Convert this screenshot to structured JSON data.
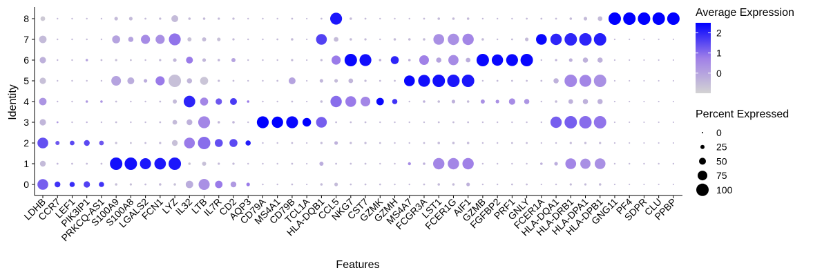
{
  "chart_data": {
    "type": "dot",
    "x_label": "Features",
    "y_label": "Identity",
    "categories": [
      "LDHB",
      "CCR7",
      "LEF1",
      "PIK3IP1",
      "PRKCQ-AS1",
      "S100A9",
      "S100A8",
      "LGALS2",
      "FCN1",
      "LYZ",
      "IL32",
      "LTB",
      "IL7R",
      "CD2",
      "AQP3",
      "CD79A",
      "MS4A1",
      "CD79B",
      "TCL1A",
      "HLA-DQB1",
      "CCL5",
      "NKG7",
      "CST7",
      "GZMK",
      "GZMH",
      "MS4A7",
      "FCGR3A",
      "LST1",
      "FCER1G",
      "AIF1",
      "GZMB",
      "FGFBP2",
      "PRF1",
      "GNLY",
      "FCER1A",
      "HLA-DQA1",
      "HLA-DRB1",
      "HLA-DPA1",
      "HLA-DPB1",
      "GNG11",
      "PF4",
      "SDPR",
      "CLU",
      "PPBP"
    ],
    "rows": [
      {
        "identity": "0",
        "pct_exp": [
          85,
          40,
          35,
          45,
          35,
          10,
          8,
          5,
          10,
          10,
          55,
          88,
          55,
          40,
          20,
          3,
          3,
          5,
          2,
          10,
          20,
          5,
          5,
          5,
          3,
          3,
          5,
          10,
          10,
          20,
          3,
          3,
          5,
          5,
          2,
          3,
          8,
          8,
          10,
          2,
          1,
          1,
          1,
          1
        ],
        "avg_exp": [
          1.2,
          1.8,
          1.9,
          1.6,
          1.8,
          -0.6,
          -0.6,
          -0.5,
          -0.5,
          -0.6,
          -0.2,
          0.4,
          0.8,
          0.2,
          0.8,
          -0.5,
          -0.5,
          -0.5,
          -0.5,
          -0.5,
          -0.5,
          -0.5,
          -0.5,
          -0.5,
          -0.5,
          -0.5,
          -0.5,
          -0.5,
          -0.5,
          -0.3,
          -0.5,
          -0.5,
          -0.5,
          -0.5,
          -0.5,
          -0.5,
          -0.5,
          -0.5,
          -0.5,
          -0.5,
          -0.5,
          -0.5,
          -0.5,
          -0.5
        ]
      },
      {
        "identity": "1",
        "pct_exp": [
          40,
          5,
          5,
          5,
          5,
          100,
          100,
          88,
          92,
          100,
          10,
          25,
          8,
          8,
          3,
          3,
          3,
          5,
          2,
          25,
          5,
          5,
          5,
          3,
          3,
          15,
          10,
          90,
          90,
          90,
          3,
          3,
          3,
          3,
          10,
          20,
          85,
          80,
          85,
          3,
          3,
          3,
          3,
          3
        ],
        "avg_exp": [
          -0.5,
          -0.4,
          -0.5,
          -0.5,
          -0.5,
          2.3,
          2.3,
          2.2,
          2.2,
          2.2,
          -0.7,
          -0.6,
          -0.5,
          -0.5,
          -0.5,
          -0.5,
          -0.5,
          -0.5,
          -0.5,
          -0.2,
          -0.5,
          -0.5,
          -0.5,
          -0.5,
          -0.5,
          0.5,
          -0.3,
          0.6,
          0.6,
          0.7,
          -0.5,
          -0.5,
          -0.5,
          -0.5,
          -0.3,
          -0.2,
          0.6,
          0.4,
          0.4,
          -0.5,
          -0.5,
          -0.5,
          -0.5,
          -0.5
        ]
      },
      {
        "identity": "2",
        "pct_exp": [
          85,
          25,
          30,
          40,
          30,
          8,
          5,
          5,
          8,
          40,
          85,
          100,
          60,
          60,
          35,
          3,
          3,
          5,
          2,
          8,
          20,
          8,
          8,
          5,
          3,
          3,
          5,
          10,
          10,
          10,
          3,
          3,
          5,
          5,
          2,
          3,
          8,
          8,
          8,
          2,
          1,
          1,
          1,
          1
        ],
        "avg_exp": [
          1.4,
          1.3,
          1.5,
          1.5,
          1.3,
          -0.6,
          -0.6,
          -0.5,
          -0.5,
          -0.6,
          0.8,
          1.0,
          1.4,
          1.5,
          2.1,
          -0.5,
          -0.5,
          -0.5,
          -0.5,
          -0.5,
          -0.3,
          -0.5,
          -0.5,
          -0.5,
          -0.5,
          -0.5,
          -0.5,
          -0.5,
          -0.5,
          -0.5,
          -0.5,
          -0.5,
          -0.5,
          -0.5,
          -0.5,
          -0.5,
          -0.5,
          -0.5,
          -0.5,
          -0.5,
          -0.5,
          -0.5,
          -0.5,
          -0.5
        ]
      },
      {
        "identity": "3",
        "pct_exp": [
          45,
          5,
          3,
          3,
          3,
          5,
          3,
          3,
          5,
          30,
          40,
          95,
          10,
          10,
          3,
          95,
          90,
          95,
          65,
          85,
          5,
          5,
          5,
          3,
          3,
          3,
          3,
          5,
          5,
          5,
          3,
          3,
          3,
          3,
          3,
          90,
          100,
          100,
          100,
          2,
          1,
          1,
          1,
          1
        ],
        "avg_exp": [
          -0.4,
          0.2,
          -0.5,
          -0.3,
          -0.5,
          -0.5,
          -0.5,
          -0.5,
          -0.5,
          -0.5,
          -0.3,
          0.6,
          -0.4,
          -0.4,
          -0.5,
          2.5,
          2.5,
          2.4,
          2.5,
          1.2,
          -0.5,
          -0.5,
          -0.5,
          -0.5,
          -0.5,
          -0.5,
          -0.5,
          -0.5,
          -0.5,
          -0.5,
          -0.5,
          -0.5,
          -0.5,
          -0.5,
          -0.5,
          1.2,
          1.2,
          1.0,
          0.9,
          -0.5,
          -0.5,
          -0.5,
          -0.5,
          -0.5
        ]
      },
      {
        "identity": "4",
        "pct_exp": [
          55,
          3,
          3,
          10,
          10,
          5,
          3,
          3,
          5,
          25,
          92,
          60,
          45,
          50,
          10,
          3,
          3,
          5,
          2,
          10,
          90,
          85,
          75,
          55,
          35,
          3,
          10,
          10,
          20,
          10,
          25,
          20,
          45,
          35,
          3,
          10,
          30,
          35,
          35,
          2,
          1,
          1,
          1,
          1
        ],
        "avg_exp": [
          0.3,
          -0.4,
          -0.5,
          0.2,
          0.3,
          -0.5,
          -0.5,
          -0.5,
          -0.5,
          -0.5,
          2.0,
          0.6,
          1.3,
          1.7,
          0.8,
          -0.5,
          -0.5,
          -0.5,
          -0.5,
          -0.5,
          1.0,
          0.8,
          0.6,
          2.4,
          1.8,
          -0.5,
          -0.3,
          -0.5,
          -0.3,
          -0.5,
          0.4,
          0.4,
          0.5,
          0.3,
          -0.5,
          -0.5,
          -0.3,
          -0.3,
          -0.3,
          -0.5,
          -0.5,
          -0.5,
          -0.5,
          -0.5
        ]
      },
      {
        "identity": "5",
        "pct_exp": [
          45,
          3,
          3,
          3,
          3,
          75,
          50,
          20,
          70,
          100,
          35,
          60,
          8,
          5,
          3,
          3,
          5,
          50,
          2,
          20,
          20,
          30,
          8,
          5,
          5,
          85,
          95,
          100,
          100,
          100,
          3,
          5,
          5,
          5,
          5,
          35,
          100,
          95,
          100,
          2,
          1,
          1,
          1,
          1
        ],
        "avg_exp": [
          -0.6,
          -0.5,
          -0.5,
          -0.5,
          -0.5,
          0.0,
          -0.2,
          -0.2,
          0.8,
          -0.6,
          -0.4,
          -0.7,
          -0.5,
          -0.5,
          -0.5,
          -0.5,
          -0.5,
          0.0,
          -0.5,
          -0.4,
          -0.5,
          -0.4,
          -0.5,
          -0.5,
          -0.5,
          2.4,
          2.3,
          2.3,
          2.2,
          2.2,
          -0.5,
          -0.5,
          -0.5,
          -0.5,
          -0.5,
          -0.3,
          0.6,
          0.6,
          0.4,
          -0.5,
          -0.5,
          -0.5,
          -0.5,
          -0.5
        ]
      },
      {
        "identity": "6",
        "pct_exp": [
          45,
          3,
          3,
          10,
          5,
          8,
          5,
          3,
          8,
          20,
          50,
          20,
          10,
          25,
          3,
          3,
          3,
          8,
          2,
          8,
          70,
          100,
          95,
          10,
          60,
          10,
          75,
          35,
          80,
          30,
          100,
          90,
          95,
          100,
          3,
          8,
          20,
          35,
          35,
          2,
          1,
          1,
          1,
          1
        ],
        "avg_exp": [
          -0.3,
          -0.4,
          -0.5,
          0.0,
          -0.5,
          -0.6,
          -0.6,
          -0.5,
          -0.5,
          -0.4,
          0.8,
          -0.4,
          -0.4,
          0.0,
          -0.5,
          -0.5,
          -0.5,
          -0.5,
          -0.5,
          -0.5,
          0.8,
          2.4,
          2.3,
          -0.3,
          2.0,
          -0.3,
          0.7,
          0.0,
          0.5,
          -0.2,
          2.4,
          2.4,
          2.4,
          2.4,
          -0.5,
          -0.4,
          -0.3,
          -0.3,
          -0.3,
          -0.5,
          -0.5,
          -0.5,
          -0.5,
          -0.5
        ]
      },
      {
        "identity": "7",
        "pct_exp": [
          55,
          3,
          3,
          3,
          3,
          60,
          35,
          70,
          70,
          95,
          25,
          25,
          20,
          8,
          3,
          3,
          5,
          10,
          2,
          85,
          30,
          10,
          8,
          3,
          10,
          10,
          10,
          85,
          90,
          90,
          10,
          3,
          5,
          20,
          85,
          90,
          100,
          100,
          100,
          2,
          1,
          1,
          1,
          1
        ],
        "avg_exp": [
          -0.5,
          -0.5,
          -0.5,
          -0.5,
          -0.5,
          0.0,
          0.0,
          0.5,
          0.4,
          0.9,
          -0.6,
          -0.5,
          -0.6,
          -0.5,
          -0.5,
          -0.5,
          -0.5,
          -0.5,
          -0.5,
          1.6,
          -0.5,
          -0.5,
          -0.5,
          -0.5,
          -0.5,
          -0.5,
          -0.5,
          0.4,
          0.4,
          0.6,
          -0.5,
          -0.5,
          -0.5,
          -0.5,
          2.4,
          2.0,
          2.0,
          2.0,
          2.1,
          -0.5,
          -0.5,
          -0.5,
          -0.5,
          -0.5
        ]
      },
      {
        "identity": "8",
        "pct_exp": [
          30,
          3,
          3,
          3,
          3,
          20,
          20,
          5,
          8,
          50,
          10,
          10,
          8,
          8,
          3,
          3,
          3,
          5,
          2,
          5,
          95,
          10,
          5,
          3,
          3,
          3,
          5,
          10,
          10,
          10,
          3,
          3,
          3,
          5,
          5,
          5,
          10,
          20,
          30,
          100,
          100,
          100,
          100,
          100
        ],
        "avg_exp": [
          -0.8,
          -0.5,
          -0.5,
          -0.5,
          -0.5,
          -0.5,
          -0.5,
          -0.5,
          -0.5,
          -0.5,
          -0.5,
          -0.5,
          -0.5,
          -0.5,
          -0.5,
          -0.5,
          -0.5,
          -0.5,
          -0.5,
          -0.5,
          2.2,
          -0.5,
          -0.5,
          -0.5,
          -0.5,
          -0.5,
          -0.5,
          -0.5,
          -0.5,
          -0.5,
          -0.5,
          -0.5,
          -0.5,
          -0.5,
          -0.5,
          -0.5,
          -0.5,
          -0.5,
          -0.5,
          2.5,
          2.5,
          2.5,
          2.5,
          2.5
        ]
      }
    ],
    "color_legend": {
      "title": "Average Expression",
      "lim": [
        -1,
        2.5
      ],
      "ticks": [
        0,
        1,
        2
      ],
      "colors": [
        "#d3d3d3",
        "#9f7fe8",
        "#0000ff"
      ]
    },
    "size_legend": {
      "title": "Percent Expressed",
      "values": [
        0,
        25,
        50,
        75,
        100
      ]
    }
  }
}
